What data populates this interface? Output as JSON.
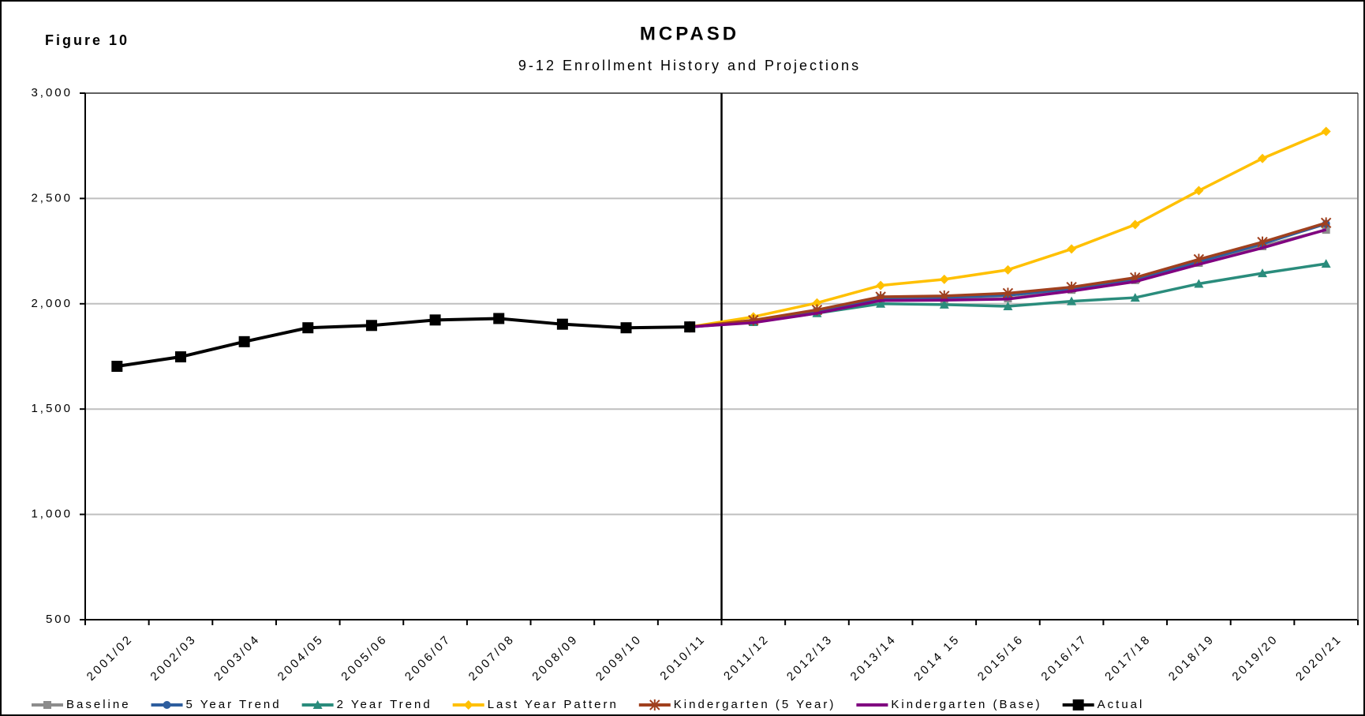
{
  "chart_data": {
    "type": "line",
    "figure_label": "Figure 10",
    "title": "MCPASD",
    "subtitle": "9-12 Enrollment History and Projections",
    "categories": [
      "2001/02",
      "2002/03",
      "2003/04",
      "2004/05",
      "2005/06",
      "2006/07",
      "2007/08",
      "2008/09",
      "2009/10",
      "2010/11",
      "2011/12",
      "2012/13",
      "2013/14",
      "2014 15",
      "2015/16",
      "2016/17",
      "2017/18",
      "2018/19",
      "2019/20",
      "2020/21"
    ],
    "ylim": [
      500,
      3000
    ],
    "yticks": [
      {
        "value": 500,
        "label": "500"
      },
      {
        "value": 1000,
        "label": "1,000"
      },
      {
        "value": 1500,
        "label": "1,500"
      },
      {
        "value": 2000,
        "label": "2,000"
      },
      {
        "value": 2500,
        "label": "2,500"
      },
      {
        "value": 3000,
        "label": "3,000"
      }
    ],
    "grid": true,
    "legend": "bottom",
    "series": [
      {
        "name": "Baseline",
        "color": "#8c8c8c",
        "marker": "square",
        "values": [
          null,
          null,
          null,
          null,
          null,
          null,
          null,
          null,
          null,
          1890,
          1913,
          1963,
          2025,
          2021,
          2025,
          2066,
          2112,
          2194,
          2273,
          2351
        ]
      },
      {
        "name": "5 Year Trend",
        "color": "#2e5e9e",
        "marker": "circle",
        "values": [
          null,
          null,
          null,
          null,
          null,
          null,
          null,
          null,
          null,
          1890,
          1915,
          1965,
          2028,
          2030,
          2040,
          2072,
          2118,
          2200,
          2285,
          2380
        ]
      },
      {
        "name": "2 Year Trend",
        "color": "#2a8c7c",
        "marker": "triangle",
        "values": [
          null,
          null,
          null,
          null,
          null,
          null,
          null,
          null,
          null,
          1890,
          1913,
          1955,
          2000,
          1996,
          1988,
          2012,
          2029,
          2095,
          2145,
          2190
        ]
      },
      {
        "name": "Last Year Pattern",
        "color": "#ffc000",
        "marker": "diamond",
        "values": [
          null,
          null,
          null,
          null,
          null,
          null,
          null,
          null,
          null,
          1890,
          1938,
          2004,
          2087,
          2116,
          2161,
          2260,
          2376,
          2537,
          2690,
          2818
        ]
      },
      {
        "name": "Kindergarten (5 Year)",
        "color": "#a0401e",
        "marker": "star",
        "values": [
          null,
          null,
          null,
          null,
          null,
          null,
          null,
          null,
          null,
          1890,
          1922,
          1971,
          2033,
          2037,
          2050,
          2079,
          2124,
          2211,
          2293,
          2384
        ]
      },
      {
        "name": "Kindergarten (Base)",
        "color": "#800080",
        "marker": "none",
        "values": [
          null,
          null,
          null,
          null,
          null,
          null,
          null,
          null,
          null,
          1890,
          1910,
          1955,
          2015,
          2017,
          2022,
          2060,
          2105,
          2187,
          2265,
          2352
        ]
      },
      {
        "name": "Actual",
        "color": "#000000",
        "marker": "bigsquare",
        "values": [
          1703,
          1748,
          1820,
          1886,
          1897,
          1923,
          1930,
          1903,
          1886,
          1890,
          null,
          null,
          null,
          null,
          null,
          null,
          null,
          null,
          null,
          null
        ]
      }
    ]
  }
}
